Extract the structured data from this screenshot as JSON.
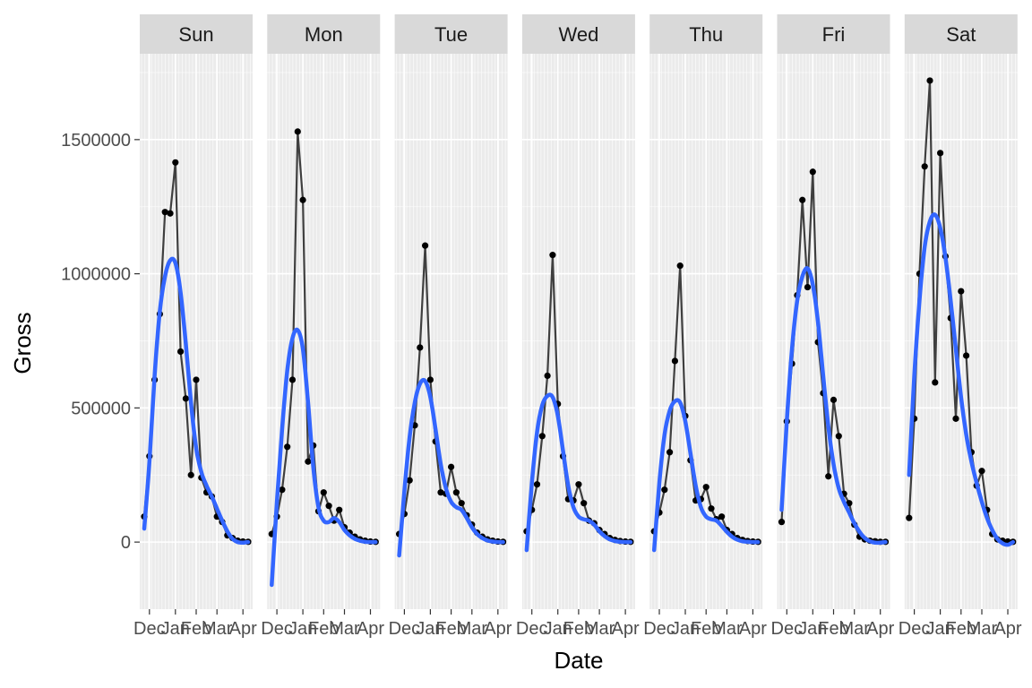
{
  "chart_data": {
    "type": "line",
    "layout": "faceted",
    "xlabel": "Date",
    "ylabel": "Gross",
    "ylim": [
      -250000,
      1820000
    ],
    "y_ticks": [
      0,
      500000,
      1000000,
      1500000
    ],
    "y_tick_labels": [
      "0",
      "500000",
      "1000000",
      "1500000"
    ],
    "x_tick_labels": [
      "Dec",
      "Jan",
      "Feb",
      "Mar",
      "Apr"
    ],
    "grid": true,
    "legend": "none",
    "colors": {
      "panel_bg": "#ebebeb",
      "grid_major": "#ffffff",
      "strip_bg": "#d9d9d9",
      "raw_line": "#3f3f3f",
      "points": "#000000",
      "smooth_line": "#3366ff"
    },
    "facets": [
      {
        "label": "Sun",
        "raw": [
          [
            0,
            95000
          ],
          [
            1,
            320000
          ],
          [
            2,
            605000
          ],
          [
            3,
            850000
          ],
          [
            4,
            1230000
          ],
          [
            5,
            1225000
          ],
          [
            6,
            1415000
          ],
          [
            7,
            710000
          ],
          [
            8,
            535000
          ],
          [
            9,
            250000
          ],
          [
            10,
            605000
          ],
          [
            11,
            240000
          ],
          [
            12,
            185000
          ],
          [
            13,
            170000
          ],
          [
            14,
            95000
          ],
          [
            15,
            75000
          ],
          [
            16,
            25000
          ],
          [
            17,
            15000
          ],
          [
            18,
            5000
          ],
          [
            19,
            2000
          ],
          [
            20,
            1000
          ]
        ],
        "smooth": [
          [
            0,
            50000
          ],
          [
            1,
            300000
          ],
          [
            2,
            620000
          ],
          [
            3,
            860000
          ],
          [
            4,
            990000
          ],
          [
            5,
            1050000
          ],
          [
            6,
            1040000
          ],
          [
            7,
            930000
          ],
          [
            8,
            740000
          ],
          [
            9,
            520000
          ],
          [
            10,
            350000
          ],
          [
            11,
            260000
          ],
          [
            12,
            210000
          ],
          [
            13,
            170000
          ],
          [
            14,
            125000
          ],
          [
            15,
            80000
          ],
          [
            16,
            40000
          ],
          [
            17,
            12000
          ],
          [
            18,
            0
          ],
          [
            19,
            -2000
          ],
          [
            20,
            0
          ]
        ]
      },
      {
        "label": "Mon",
        "raw": [
          [
            0,
            30000
          ],
          [
            1,
            95000
          ],
          [
            2,
            195000
          ],
          [
            3,
            355000
          ],
          [
            4,
            605000
          ],
          [
            5,
            1530000
          ],
          [
            6,
            1275000
          ],
          [
            7,
            300000
          ],
          [
            8,
            360000
          ],
          [
            9,
            115000
          ],
          [
            10,
            185000
          ],
          [
            11,
            135000
          ],
          [
            12,
            80000
          ],
          [
            13,
            120000
          ],
          [
            14,
            55000
          ],
          [
            15,
            35000
          ],
          [
            16,
            20000
          ],
          [
            17,
            10000
          ],
          [
            18,
            5000
          ],
          [
            19,
            2000
          ],
          [
            20,
            1000
          ]
        ],
        "smooth": [
          [
            0,
            -160000
          ],
          [
            1,
            150000
          ],
          [
            2,
            420000
          ],
          [
            3,
            640000
          ],
          [
            4,
            760000
          ],
          [
            5,
            790000
          ],
          [
            6,
            720000
          ],
          [
            7,
            520000
          ],
          [
            8,
            280000
          ],
          [
            9,
            130000
          ],
          [
            10,
            80000
          ],
          [
            11,
            75000
          ],
          [
            12,
            90000
          ],
          [
            13,
            75000
          ],
          [
            14,
            45000
          ],
          [
            15,
            25000
          ],
          [
            16,
            12000
          ],
          [
            17,
            5000
          ],
          [
            18,
            1000
          ],
          [
            19,
            0
          ],
          [
            20,
            0
          ]
        ]
      },
      {
        "label": "Tue",
        "raw": [
          [
            0,
            30000
          ],
          [
            1,
            105000
          ],
          [
            2,
            230000
          ],
          [
            3,
            435000
          ],
          [
            4,
            725000
          ],
          [
            5,
            1105000
          ],
          [
            6,
            605000
          ],
          [
            7,
            375000
          ],
          [
            8,
            185000
          ],
          [
            9,
            180000
          ],
          [
            10,
            280000
          ],
          [
            11,
            185000
          ],
          [
            12,
            145000
          ],
          [
            13,
            100000
          ],
          [
            14,
            65000
          ],
          [
            15,
            35000
          ],
          [
            16,
            20000
          ],
          [
            17,
            10000
          ],
          [
            18,
            5000
          ],
          [
            19,
            2000
          ],
          [
            20,
            1000
          ]
        ],
        "smooth": [
          [
            0,
            -50000
          ],
          [
            1,
            190000
          ],
          [
            2,
            390000
          ],
          [
            3,
            520000
          ],
          [
            4,
            590000
          ],
          [
            5,
            600000
          ],
          [
            6,
            540000
          ],
          [
            7,
            420000
          ],
          [
            8,
            290000
          ],
          [
            9,
            200000
          ],
          [
            10,
            150000
          ],
          [
            11,
            130000
          ],
          [
            12,
            120000
          ],
          [
            13,
            90000
          ],
          [
            14,
            55000
          ],
          [
            15,
            30000
          ],
          [
            16,
            15000
          ],
          [
            17,
            6000
          ],
          [
            18,
            2000
          ],
          [
            19,
            0
          ],
          [
            20,
            0
          ]
        ]
      },
      {
        "label": "Wed",
        "raw": [
          [
            0,
            40000
          ],
          [
            1,
            120000
          ],
          [
            2,
            215000
          ],
          [
            3,
            395000
          ],
          [
            4,
            620000
          ],
          [
            5,
            1070000
          ],
          [
            6,
            515000
          ],
          [
            7,
            320000
          ],
          [
            8,
            160000
          ],
          [
            9,
            155000
          ],
          [
            10,
            215000
          ],
          [
            11,
            145000
          ],
          [
            12,
            80000
          ],
          [
            13,
            70000
          ],
          [
            14,
            45000
          ],
          [
            15,
            30000
          ],
          [
            16,
            15000
          ],
          [
            17,
            8000
          ],
          [
            18,
            4000
          ],
          [
            19,
            2000
          ],
          [
            20,
            1000
          ]
        ],
        "smooth": [
          [
            0,
            -30000
          ],
          [
            1,
            220000
          ],
          [
            2,
            410000
          ],
          [
            3,
            510000
          ],
          [
            4,
            545000
          ],
          [
            5,
            540000
          ],
          [
            6,
            470000
          ],
          [
            7,
            340000
          ],
          [
            8,
            210000
          ],
          [
            9,
            130000
          ],
          [
            10,
            95000
          ],
          [
            11,
            85000
          ],
          [
            12,
            80000
          ],
          [
            13,
            65000
          ],
          [
            14,
            40000
          ],
          [
            15,
            22000
          ],
          [
            16,
            10000
          ],
          [
            17,
            4000
          ],
          [
            18,
            1000
          ],
          [
            19,
            0
          ],
          [
            20,
            0
          ]
        ]
      },
      {
        "label": "Thu",
        "raw": [
          [
            0,
            40000
          ],
          [
            1,
            110000
          ],
          [
            2,
            195000
          ],
          [
            3,
            335000
          ],
          [
            4,
            675000
          ],
          [
            5,
            1030000
          ],
          [
            6,
            470000
          ],
          [
            7,
            305000
          ],
          [
            8,
            155000
          ],
          [
            9,
            160000
          ],
          [
            10,
            205000
          ],
          [
            11,
            125000
          ],
          [
            12,
            85000
          ],
          [
            13,
            95000
          ],
          [
            14,
            45000
          ],
          [
            15,
            30000
          ],
          [
            16,
            15000
          ],
          [
            17,
            8000
          ],
          [
            18,
            4000
          ],
          [
            19,
            2000
          ],
          [
            20,
            1000
          ]
        ],
        "smooth": [
          [
            0,
            -30000
          ],
          [
            1,
            220000
          ],
          [
            2,
            400000
          ],
          [
            3,
            490000
          ],
          [
            4,
            525000
          ],
          [
            5,
            520000
          ],
          [
            6,
            450000
          ],
          [
            7,
            330000
          ],
          [
            8,
            210000
          ],
          [
            9,
            130000
          ],
          [
            10,
            95000
          ],
          [
            11,
            85000
          ],
          [
            12,
            80000
          ],
          [
            13,
            60000
          ],
          [
            14,
            38000
          ],
          [
            15,
            20000
          ],
          [
            16,
            9000
          ],
          [
            17,
            3000
          ],
          [
            18,
            1000
          ],
          [
            19,
            0
          ],
          [
            20,
            0
          ]
        ]
      },
      {
        "label": "Fri",
        "raw": [
          [
            0,
            75000
          ],
          [
            1,
            450000
          ],
          [
            2,
            665000
          ],
          [
            3,
            920000
          ],
          [
            4,
            1275000
          ],
          [
            5,
            950000
          ],
          [
            6,
            1380000
          ],
          [
            7,
            745000
          ],
          [
            8,
            555000
          ],
          [
            9,
            245000
          ],
          [
            10,
            530000
          ],
          [
            11,
            395000
          ],
          [
            12,
            180000
          ],
          [
            13,
            145000
          ],
          [
            14,
            65000
          ],
          [
            15,
            20000
          ],
          [
            16,
            10000
          ],
          [
            17,
            5000
          ],
          [
            18,
            3000
          ],
          [
            19,
            1000
          ],
          [
            20,
            1000
          ]
        ],
        "smooth": [
          [
            0,
            120000
          ],
          [
            1,
            450000
          ],
          [
            2,
            720000
          ],
          [
            3,
            900000
          ],
          [
            4,
            990000
          ],
          [
            5,
            1020000
          ],
          [
            6,
            960000
          ],
          [
            7,
            820000
          ],
          [
            8,
            620000
          ],
          [
            9,
            430000
          ],
          [
            10,
            290000
          ],
          [
            11,
            200000
          ],
          [
            12,
            150000
          ],
          [
            13,
            110000
          ],
          [
            14,
            70000
          ],
          [
            15,
            38000
          ],
          [
            16,
            15000
          ],
          [
            17,
            3000
          ],
          [
            18,
            -2000
          ],
          [
            19,
            -2000
          ],
          [
            20,
            0
          ]
        ]
      },
      {
        "label": "Sat",
        "raw": [
          [
            0,
            90000
          ],
          [
            1,
            460000
          ],
          [
            2,
            1000000
          ],
          [
            3,
            1400000
          ],
          [
            4,
            1720000
          ],
          [
            5,
            595000
          ],
          [
            6,
            1450000
          ],
          [
            7,
            1065000
          ],
          [
            8,
            835000
          ],
          [
            9,
            460000
          ],
          [
            10,
            935000
          ],
          [
            11,
            695000
          ],
          [
            12,
            335000
          ],
          [
            13,
            210000
          ],
          [
            14,
            265000
          ],
          [
            15,
            120000
          ],
          [
            16,
            30000
          ],
          [
            17,
            10000
          ],
          [
            18,
            5000
          ],
          [
            19,
            2000
          ],
          [
            20,
            1000
          ]
        ],
        "smooth": [
          [
            0,
            250000
          ],
          [
            1,
            620000
          ],
          [
            2,
            900000
          ],
          [
            3,
            1100000
          ],
          [
            4,
            1195000
          ],
          [
            5,
            1220000
          ],
          [
            6,
            1170000
          ],
          [
            7,
            1060000
          ],
          [
            8,
            900000
          ],
          [
            9,
            720000
          ],
          [
            10,
            540000
          ],
          [
            11,
            400000
          ],
          [
            12,
            300000
          ],
          [
            13,
            220000
          ],
          [
            14,
            150000
          ],
          [
            15,
            90000
          ],
          [
            16,
            45000
          ],
          [
            17,
            12000
          ],
          [
            18,
            -5000
          ],
          [
            19,
            -10000
          ],
          [
            20,
            0
          ]
        ]
      }
    ]
  }
}
